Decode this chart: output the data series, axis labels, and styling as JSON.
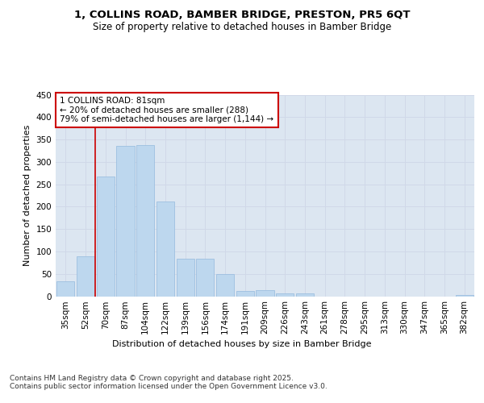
{
  "title1": "1, COLLINS ROAD, BAMBER BRIDGE, PRESTON, PR5 6QT",
  "title2": "Size of property relative to detached houses in Bamber Bridge",
  "xlabel": "Distribution of detached houses by size in Bamber Bridge",
  "ylabel": "Number of detached properties",
  "categories": [
    "35sqm",
    "52sqm",
    "70sqm",
    "87sqm",
    "104sqm",
    "122sqm",
    "139sqm",
    "156sqm",
    "174sqm",
    "191sqm",
    "209sqm",
    "226sqm",
    "243sqm",
    "261sqm",
    "278sqm",
    "295sqm",
    "313sqm",
    "330sqm",
    "347sqm",
    "365sqm",
    "382sqm"
  ],
  "values": [
    33,
    90,
    268,
    335,
    338,
    212,
    83,
    83,
    50,
    11,
    14,
    7,
    7,
    0,
    0,
    0,
    0,
    0,
    0,
    0,
    3
  ],
  "bar_color": "#bdd7ee",
  "bar_edge_color": "#9dbfe0",
  "grid_color": "#d0d8e8",
  "background_color": "#dce6f1",
  "vline_color": "#cc0000",
  "annotation_text": "1 COLLINS ROAD: 81sqm\n← 20% of detached houses are smaller (288)\n79% of semi-detached houses are larger (1,144) →",
  "annotation_box_facecolor": "white",
  "annotation_box_edgecolor": "#cc0000",
  "ylim": [
    0,
    450
  ],
  "yticks": [
    0,
    50,
    100,
    150,
    200,
    250,
    300,
    350,
    400,
    450
  ],
  "footnote": "Contains HM Land Registry data © Crown copyright and database right 2025.\nContains public sector information licensed under the Open Government Licence v3.0.",
  "title1_fontsize": 9.5,
  "title2_fontsize": 8.5,
  "axis_label_fontsize": 8,
  "tick_fontsize": 7.5,
  "annotation_fontsize": 7.5,
  "footnote_fontsize": 6.5,
  "vline_bar_index": 2
}
